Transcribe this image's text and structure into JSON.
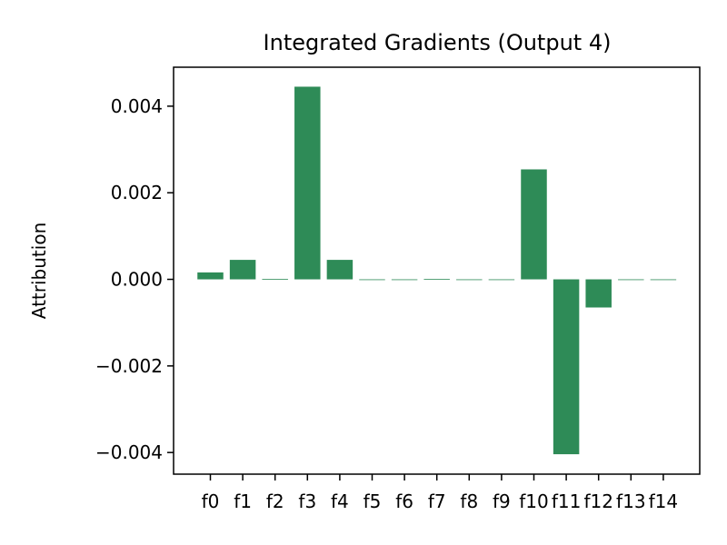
{
  "chart_data": {
    "type": "bar",
    "title": "Integrated Gradients (Output 4)",
    "xlabel": "",
    "ylabel": "Attribution",
    "categories": [
      "f0",
      "f1",
      "f2",
      "f3",
      "f4",
      "f5",
      "f6",
      "f7",
      "f8",
      "f9",
      "f10",
      "f11",
      "f12",
      "f13",
      "f14"
    ],
    "values": [
      0.00016,
      0.00045,
      1e-05,
      0.00445,
      0.00045,
      0,
      0,
      1e-05,
      0,
      0,
      0.00254,
      -0.00404,
      -0.00065,
      0,
      0
    ],
    "ylim": [
      -0.0045,
      0.0049
    ],
    "yticks": [
      {
        "value": -0.004,
        "label": "−0.004"
      },
      {
        "value": -0.002,
        "label": "−0.002"
      },
      {
        "value": 0.0,
        "label": "0.000"
      },
      {
        "value": 0.002,
        "label": "0.002"
      },
      {
        "value": 0.004,
        "label": "0.004"
      }
    ],
    "bar_color": "#2e8b57",
    "grid": false,
    "legend": "none"
  }
}
